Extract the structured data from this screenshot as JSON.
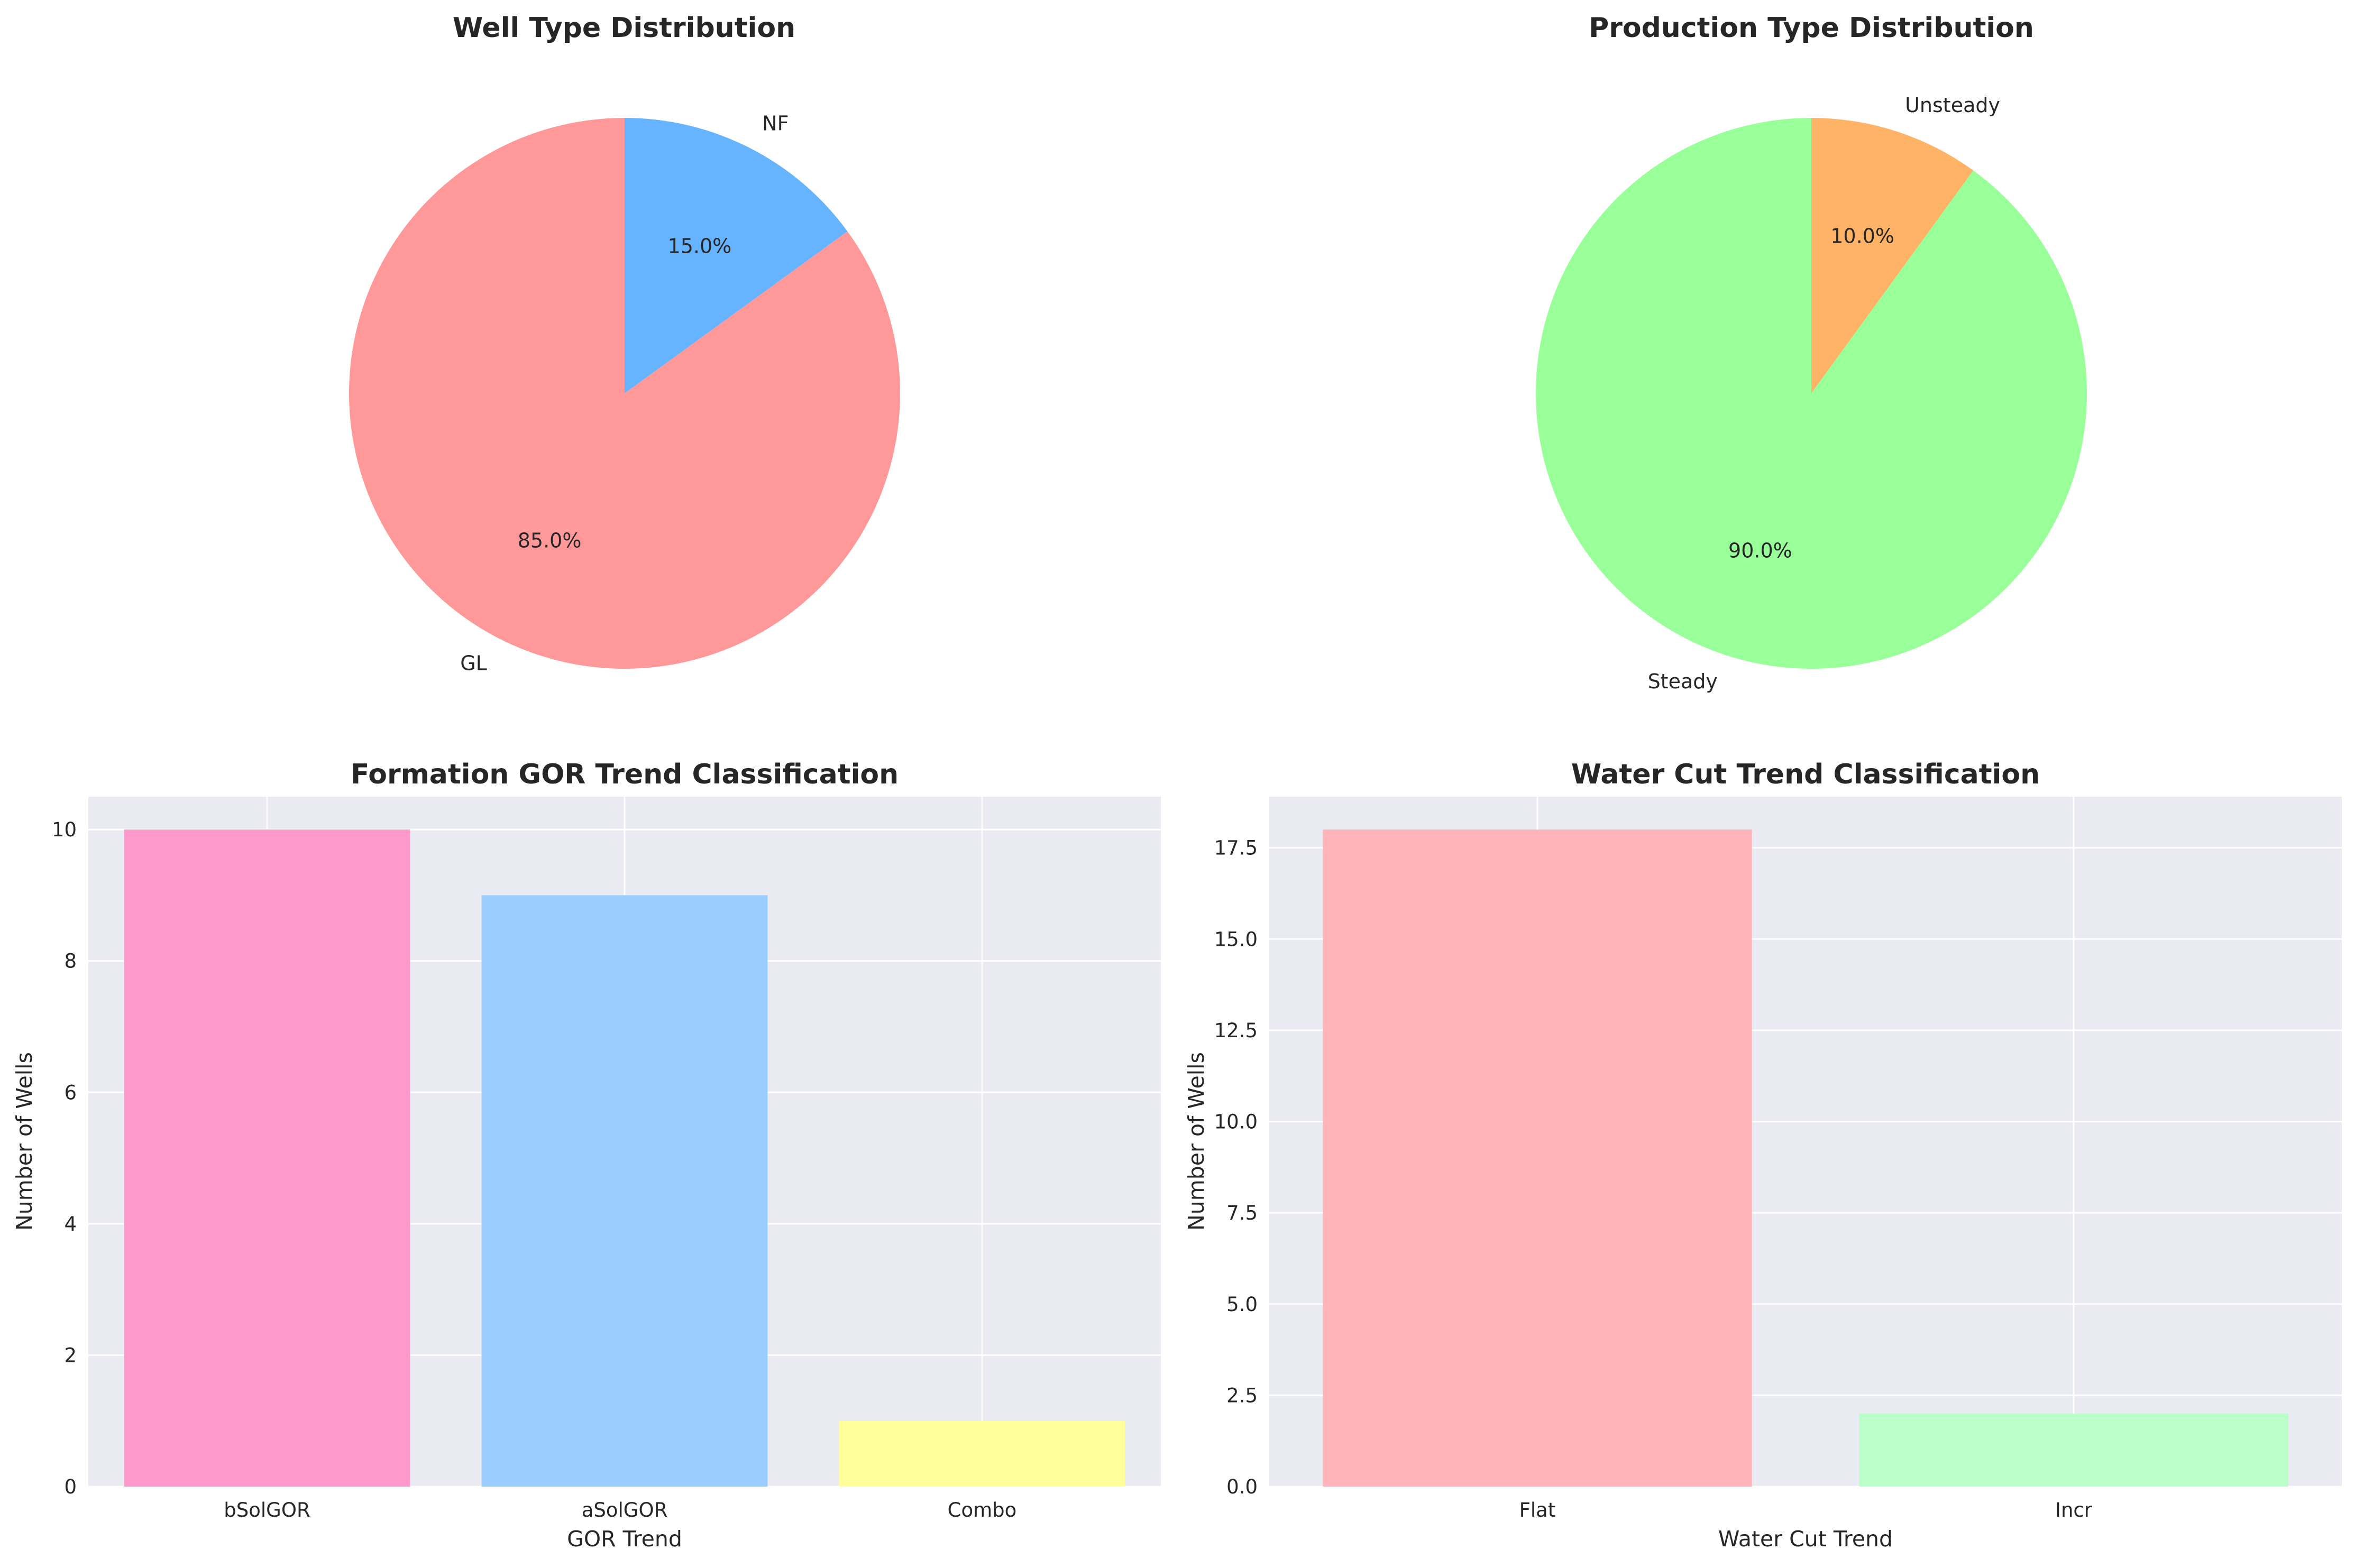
{
  "chart_data": [
    {
      "type": "pie",
      "title": "Well Type Distribution",
      "labels": [
        "NF",
        "GL"
      ],
      "values": [
        15.0,
        85.0
      ],
      "pct_labels": [
        "15.0%",
        "85.0%"
      ],
      "colors": [
        "#66b3ff",
        "#ff9999"
      ],
      "start_angle_deg": 90,
      "direction": "clockwise"
    },
    {
      "type": "pie",
      "title": "Production Type Distribution",
      "labels": [
        "Unsteady",
        "Steady"
      ],
      "values": [
        10.0,
        90.0
      ],
      "pct_labels": [
        "10.0%",
        "90.0%"
      ],
      "colors": [
        "#ffb366",
        "#99ff99"
      ],
      "start_angle_deg": 90,
      "direction": "clockwise"
    },
    {
      "type": "bar",
      "title": "Formation GOR Trend Classification",
      "categories": [
        "bSolGOR",
        "aSolGOR",
        "Combo"
      ],
      "values": [
        10,
        9,
        1
      ],
      "colors": [
        "#ff99cc",
        "#99ccff",
        "#ffff99"
      ],
      "xlabel": "GOR Trend",
      "ylabel": "Number of Wells",
      "ylim": [
        0,
        10.5
      ],
      "yticks": [
        0,
        2,
        4,
        6,
        8,
        10
      ],
      "ytick_labels": [
        "0",
        "2",
        "4",
        "6",
        "8",
        "10"
      ],
      "grid": true,
      "background": "#eaeaf2"
    },
    {
      "type": "bar",
      "title": "Water Cut Trend Classification",
      "categories": [
        "Flat",
        "Incr"
      ],
      "values": [
        18,
        2
      ],
      "colors": [
        "#ffb3ba",
        "#baffc9"
      ],
      "xlabel": "Water Cut Trend",
      "ylabel": "Number of Wells",
      "ylim": [
        0,
        18.9
      ],
      "yticks": [
        0,
        2.5,
        5,
        7.5,
        10,
        12.5,
        15,
        17.5
      ],
      "ytick_labels": [
        "0.0",
        "2.5",
        "5.0",
        "7.5",
        "10.0",
        "12.5",
        "15.0",
        "17.5"
      ],
      "grid": true,
      "background": "#eaeaf2"
    }
  ]
}
